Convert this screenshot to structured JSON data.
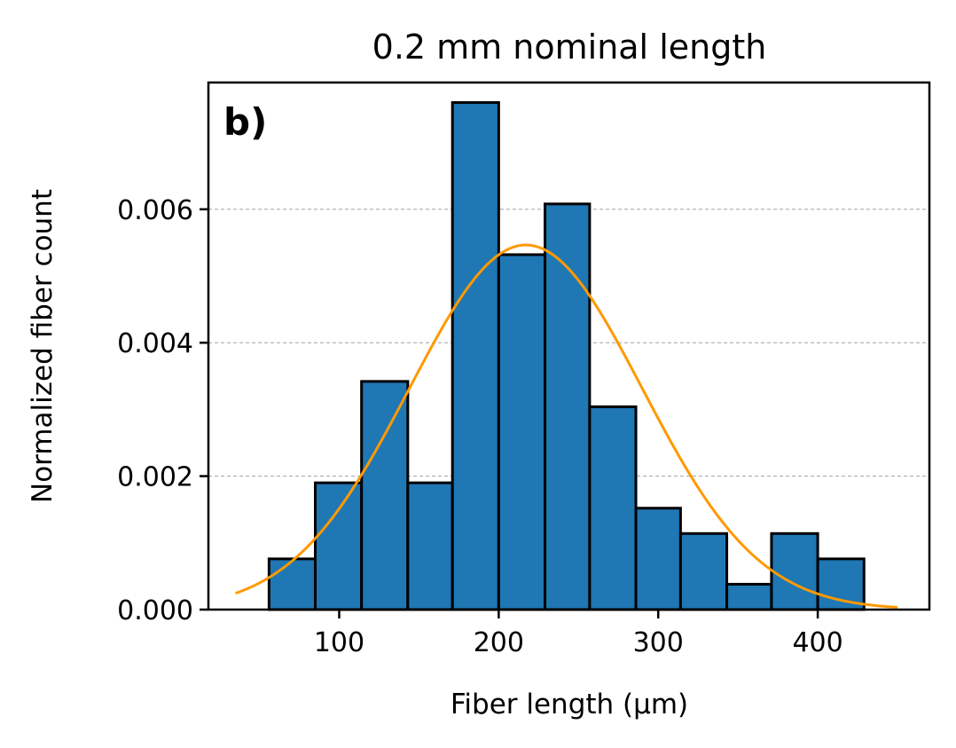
{
  "chart_data": {
    "type": "bar",
    "title": "0.2 mm nominal length",
    "panel_label": "b)",
    "xlabel": "Fiber length (µm)",
    "ylabel": "Normalized fiber count",
    "xlim": [
      18,
      470
    ],
    "ylim": [
      0,
      0.0079
    ],
    "xticks": [
      100,
      200,
      300,
      400
    ],
    "yticks": [
      0.0,
      0.002,
      0.004,
      0.006
    ],
    "ytick_labels": [
      "0.000",
      "0.002",
      "0.004",
      "0.006"
    ],
    "grid": "horizontal dashed",
    "bins": [
      {
        "x0": 56,
        "x1": 85,
        "value": 0.00076
      },
      {
        "x0": 85,
        "x1": 114,
        "value": 0.0019
      },
      {
        "x0": 114,
        "x1": 143,
        "value": 0.00342
      },
      {
        "x0": 143,
        "x1": 171,
        "value": 0.0019
      },
      {
        "x0": 171,
        "x1": 200,
        "value": 0.0076
      },
      {
        "x0": 200,
        "x1": 229,
        "value": 0.00532
      },
      {
        "x0": 229,
        "x1": 257,
        "value": 0.00608
      },
      {
        "x0": 257,
        "x1": 286,
        "value": 0.00304
      },
      {
        "x0": 286,
        "x1": 314,
        "value": 0.00152
      },
      {
        "x0": 314,
        "x1": 343,
        "value": 0.00114
      },
      {
        "x0": 343,
        "x1": 371,
        "value": 0.00038
      },
      {
        "x0": 371,
        "x1": 400,
        "value": 0.00114
      },
      {
        "x0": 400,
        "x1": 429,
        "value": 0.00076
      }
    ],
    "fit": {
      "type": "normal",
      "mean": 217,
      "std": 73,
      "x_range": [
        35,
        450
      ]
    },
    "colors": {
      "bar": "#1f77b4",
      "edge": "#000000",
      "fit": "#ff9900",
      "grid": "#a0a0a0"
    }
  }
}
